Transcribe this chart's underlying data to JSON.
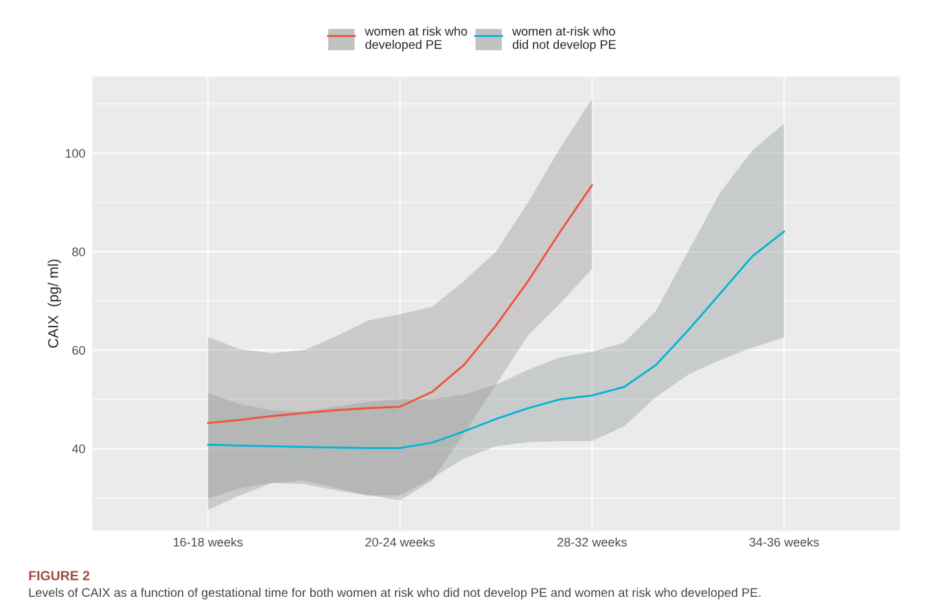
{
  "chart_data": {
    "type": "line",
    "ylabel": "CAIX  (pg/ ml)",
    "categories": [
      "16-18 weeks",
      null,
      null,
      null,
      null,
      null,
      "20-24 weeks",
      null,
      null,
      null,
      null,
      null,
      "28-32 weeks",
      null,
      null,
      null,
      null,
      null,
      "34-36 weeks"
    ],
    "ylim": [
      23.4,
      115.5
    ],
    "yticks": [
      {
        "value": 30,
        "label": null
      },
      40,
      {
        "value": 50,
        "label": null
      },
      60,
      {
        "value": 70,
        "label": null
      },
      80,
      {
        "value": 90,
        "label": null
      },
      100,
      {
        "value": 110,
        "label": null
      }
    ],
    "grid": true,
    "legend": "top",
    "line_style": "solid",
    "marker": "none",
    "series": [
      {
        "name": "women at risk who\ndeveloped PE",
        "color": "#f0533a",
        "values": [
          45.2,
          45.8,
          46.6,
          47.2,
          47.8,
          48.2,
          48.5,
          51.5,
          57,
          65,
          74,
          84,
          93.5,
          null,
          null,
          null,
          null,
          null,
          null
        ],
        "upper": [
          62.7,
          60.2,
          59.4,
          60,
          62.8,
          66,
          67.3,
          68.8,
          74,
          80,
          90,
          101,
          111,
          null,
          null,
          null,
          null,
          null,
          null
        ],
        "lower": [
          27.5,
          30.5,
          33,
          33.5,
          32,
          30.5,
          29.5,
          33.5,
          43,
          53,
          63,
          69.5,
          76.5,
          null,
          null,
          null,
          null,
          null,
          null
        ]
      },
      {
        "name": "women at-risk who\ndid not develop PE",
        "color": "#00b4d6",
        "values": [
          40.8,
          40.6,
          40.5,
          40.3,
          40.2,
          40.1,
          40.1,
          41.2,
          43.5,
          46,
          48.2,
          50,
          50.8,
          52.5,
          57,
          64,
          71.5,
          79,
          84.1
        ],
        "upper": [
          51.3,
          49,
          47.8,
          47.5,
          48.5,
          49.5,
          50,
          50,
          51,
          53,
          56,
          58.5,
          59.7,
          61.5,
          68,
          80,
          92,
          100.5,
          106
        ],
        "lower": [
          29.8,
          32,
          33,
          32.8,
          31.5,
          30.5,
          30.5,
          34,
          38,
          40.5,
          41.3,
          41.5,
          41.5,
          44.5,
          50.5,
          55,
          58,
          60.5,
          62.6
        ]
      }
    ],
    "annotations": [
      "FIGURE 2",
      "Levels of CAIX as a function of gestational time for both women at risk who did not develop PE and women at risk who developed PE."
    ]
  }
}
